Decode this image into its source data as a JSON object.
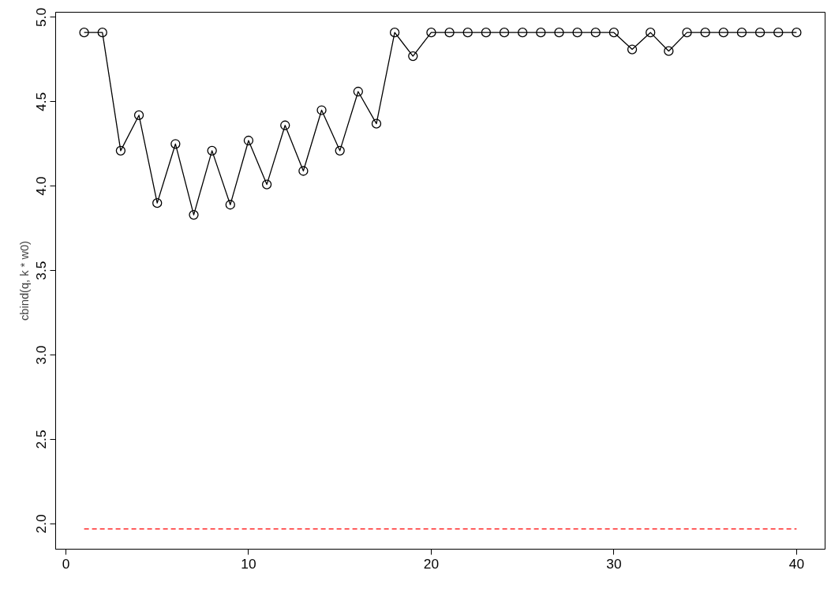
{
  "chart_data": {
    "type": "line",
    "ylabel": "cbind(q, k * w0)",
    "x": [
      1,
      2,
      3,
      4,
      5,
      6,
      7,
      8,
      9,
      10,
      11,
      12,
      13,
      14,
      15,
      16,
      17,
      18,
      19,
      20,
      21,
      22,
      23,
      24,
      25,
      26,
      27,
      28,
      29,
      30,
      31,
      32,
      33,
      34,
      35,
      36,
      37,
      38,
      39,
      40
    ],
    "series": [
      {
        "color": "#000000",
        "marker": "circle",
        "line_style": "solid",
        "values": [
          4.91,
          4.91,
          4.21,
          4.42,
          3.9,
          4.25,
          3.83,
          4.21,
          3.89,
          4.27,
          4.01,
          4.36,
          4.09,
          4.45,
          4.21,
          4.56,
          4.37,
          4.91,
          4.77,
          4.91,
          4.91,
          4.91,
          4.91,
          4.91,
          4.91,
          4.91,
          4.91,
          4.91,
          4.91,
          4.91,
          4.81,
          4.91,
          4.8,
          4.91,
          4.91,
          4.91,
          4.91,
          4.91,
          4.91,
          4.91
        ]
      },
      {
        "color": "#ff0000",
        "marker": "none",
        "line_style": "dashed",
        "values": [
          1.97,
          1.97,
          1.97,
          1.97,
          1.97,
          1.97,
          1.97,
          1.97,
          1.97,
          1.97,
          1.97,
          1.97,
          1.97,
          1.97,
          1.97,
          1.97,
          1.97,
          1.97,
          1.97,
          1.97,
          1.97,
          1.97,
          1.97,
          1.97,
          1.97,
          1.97,
          1.97,
          1.97,
          1.97,
          1.97,
          1.97,
          1.97,
          1.97,
          1.97,
          1.97,
          1.97,
          1.97,
          1.97,
          1.97,
          1.97
        ]
      }
    ],
    "xlim": [
      -0.56,
      41.56
    ],
    "ylim": [
      1.85,
      5.03
    ],
    "xticks": [
      0,
      10,
      20,
      30,
      40
    ],
    "yticks": [
      {
        "value": 2,
        "label": "2.0"
      },
      {
        "value": 2.5,
        "label": "2.5"
      },
      {
        "value": 3,
        "label": "3.0"
      },
      {
        "value": 3.5,
        "label": "3.5"
      },
      {
        "value": 4,
        "label": "4.0"
      },
      {
        "value": 4.5,
        "label": "4.5"
      },
      {
        "value": 5,
        "label": "5.0"
      }
    ],
    "grid": false
  }
}
